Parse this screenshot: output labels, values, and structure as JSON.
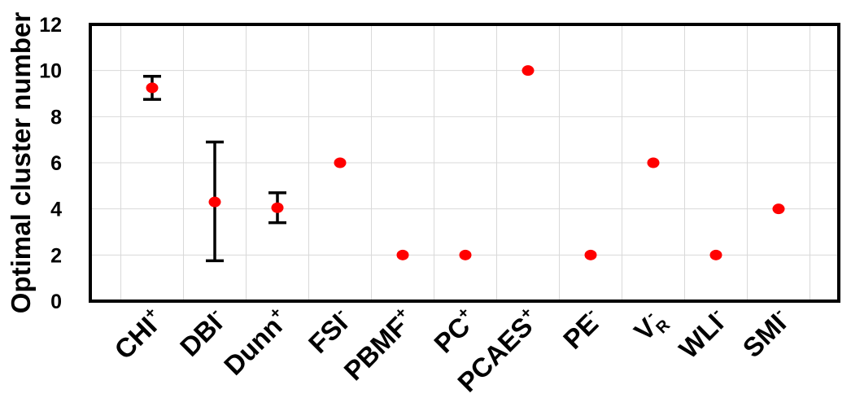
{
  "chart_data": {
    "type": "scatter",
    "title": "",
    "xlabel": "",
    "ylabel": "Optimal cluster number",
    "ylim": [
      0,
      12
    ],
    "yticks": [
      0,
      2,
      4,
      6,
      8,
      10,
      12
    ],
    "grid": true,
    "legend": "none",
    "marker_color": "#ff0000",
    "errorbar_color": "#000000",
    "categories": [
      {
        "base": "CHI",
        "sup": "+",
        "sub": ""
      },
      {
        "base": "DBI",
        "sup": "-",
        "sub": ""
      },
      {
        "base": "Dunn",
        "sup": "+",
        "sub": ""
      },
      {
        "base": "FSI",
        "sup": "-",
        "sub": ""
      },
      {
        "base": "PBMF",
        "sup": "+",
        "sub": ""
      },
      {
        "base": "PC",
        "sup": "+",
        "sub": ""
      },
      {
        "base": "PCAES",
        "sup": "+",
        "sub": ""
      },
      {
        "base": "PE",
        "sup": "-",
        "sub": ""
      },
      {
        "base": "V",
        "sup": "-",
        "sub": "R"
      },
      {
        "base": "WLI",
        "sup": "-",
        "sub": ""
      },
      {
        "base": "SMI",
        "sup": "-",
        "sub": ""
      }
    ],
    "values": [
      9.25,
      4.3,
      4.05,
      6,
      2,
      2,
      10,
      2,
      6,
      2,
      4
    ],
    "error_low": [
      8.75,
      1.75,
      3.4,
      null,
      null,
      null,
      null,
      null,
      null,
      null,
      null
    ],
    "error_high": [
      9.75,
      6.9,
      4.7,
      null,
      null,
      null,
      null,
      null,
      null,
      null,
      null
    ]
  }
}
